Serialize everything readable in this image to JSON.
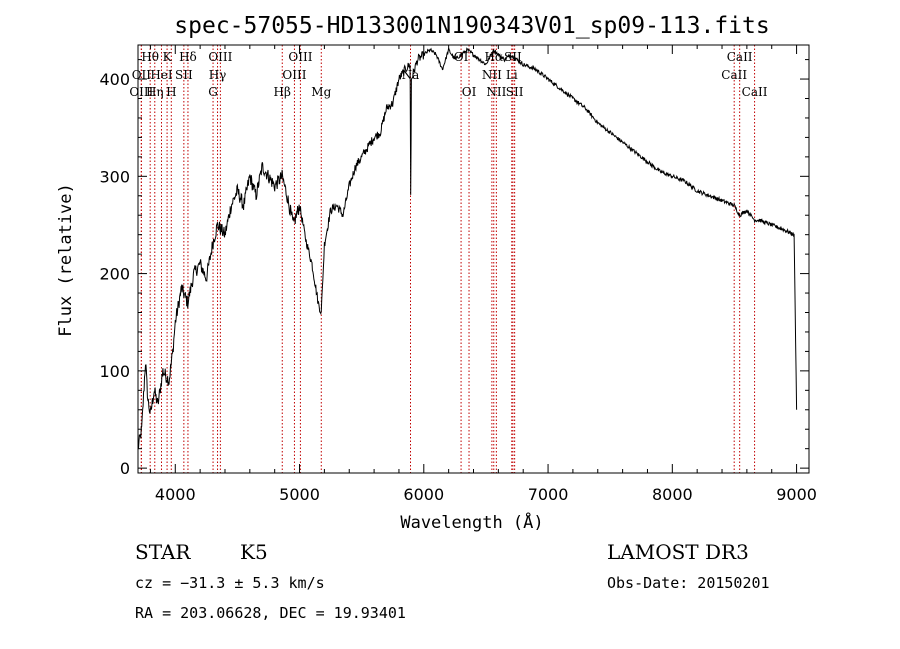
{
  "chart_data": {
    "type": "line",
    "title": "spec-57055-HD133001N190343V01_sp09-113.fits",
    "xlabel": "Wavelength (Å)",
    "ylabel": "Flux (relative)",
    "xlim": [
      3700,
      9100
    ],
    "ylim": [
      -5,
      435
    ],
    "xticks": [
      4000,
      5000,
      6000,
      7000,
      8000,
      9000
    ],
    "yticks": [
      0,
      100,
      200,
      300,
      400
    ],
    "series": [
      {
        "name": "flux",
        "x": [
          3700,
          3730,
          3760,
          3780,
          3800,
          3830,
          3860,
          3900,
          3950,
          3980,
          4000,
          4050,
          4100,
          4150,
          4200,
          4250,
          4300,
          4340,
          4400,
          4450,
          4500,
          4550,
          4600,
          4650,
          4700,
          4750,
          4800,
          4860,
          4900,
          4950,
          5000,
          5050,
          5100,
          5150,
          5175,
          5200,
          5250,
          5300,
          5350,
          5400,
          5450,
          5500,
          5550,
          5600,
          5650,
          5700,
          5750,
          5800,
          5850,
          5890,
          5895,
          5900,
          5950,
          6000,
          6050,
          6100,
          6150,
          6200,
          6250,
          6300,
          6350,
          6400,
          6450,
          6500,
          6563,
          6600,
          6650,
          6700,
          6750,
          6800,
          6900,
          7000,
          7100,
          7200,
          7300,
          7400,
          7500,
          7600,
          7700,
          7800,
          7900,
          8000,
          8100,
          8200,
          8300,
          8400,
          8498,
          8542,
          8600,
          8662,
          8700,
          8800,
          8900,
          8980,
          9000
        ],
        "y": [
          20,
          40,
          110,
          70,
          55,
          80,
          65,
          100,
          90,
          120,
          150,
          185,
          170,
          200,
          210,
          195,
          230,
          250,
          240,
          270,
          285,
          270,
          300,
          280,
          310,
          300,
          290,
          300,
          280,
          250,
          270,
          235,
          210,
          170,
          160,
          230,
          265,
          270,
          260,
          290,
          310,
          320,
          330,
          340,
          345,
          370,
          375,
          400,
          410,
          415,
          280,
          400,
          420,
          425,
          430,
          425,
          410,
          430,
          420,
          425,
          430,
          425,
          420,
          415,
          430,
          425,
          420,
          425,
          420,
          415,
          410,
          400,
          390,
          380,
          370,
          355,
          345,
          335,
          325,
          315,
          305,
          300,
          295,
          285,
          280,
          275,
          270,
          260,
          265,
          255,
          255,
          250,
          245,
          240,
          60
        ]
      }
    ],
    "spectral_lines": [
      {
        "name": "Hθ",
        "wl": 3798,
        "level": 0
      },
      {
        "name": "OII",
        "wl": 3727,
        "level": 1
      },
      {
        "name": "OIII",
        "wl": 3727,
        "level": 2
      },
      {
        "name": "K",
        "wl": 3934,
        "level": 0
      },
      {
        "name": "Hδ",
        "wl": 4102,
        "level": 0
      },
      {
        "name": "HeI",
        "wl": 3889,
        "level": 1
      },
      {
        "name": "SII",
        "wl": 4069,
        "level": 1
      },
      {
        "name": "Hη",
        "wl": 3835,
        "level": 2
      },
      {
        "name": "H",
        "wl": 3968,
        "level": 2
      },
      {
        "name": "OIII",
        "wl": 4363,
        "level": 0
      },
      {
        "name": "Hγ",
        "wl": 4340,
        "level": 1
      },
      {
        "name": "G",
        "wl": 4304,
        "level": 2
      },
      {
        "name": "OIII",
        "wl": 5007,
        "level": 0
      },
      {
        "name": "OIII",
        "wl": 4959,
        "level": 1
      },
      {
        "name": "Hβ",
        "wl": 4861,
        "level": 2
      },
      {
        "name": "Mg",
        "wl": 5175,
        "level": 2
      },
      {
        "name": "Na",
        "wl": 5893,
        "level": 1
      },
      {
        "name": "OI",
        "wl": 6300,
        "level": 0
      },
      {
        "name": "OI",
        "wl": 6364,
        "level": 2
      },
      {
        "name": "Hα",
        "wl": 6563,
        "level": 0
      },
      {
        "name": "SII",
        "wl": 6717,
        "level": 0
      },
      {
        "name": "NII",
        "wl": 6548,
        "level": 1
      },
      {
        "name": "Li",
        "wl": 6708,
        "level": 1
      },
      {
        "name": "NII",
        "wl": 6584,
        "level": 2
      },
      {
        "name": "SII",
        "wl": 6731,
        "level": 2
      },
      {
        "name": "CaII",
        "wl": 8542,
        "level": 0
      },
      {
        "name": "CaII",
        "wl": 8498,
        "level": 1
      },
      {
        "name": "CaII",
        "wl": 8662,
        "level": 2
      }
    ],
    "line_color": "#c00000",
    "spectrum_color": "#000000"
  },
  "info": {
    "class": "STAR",
    "subclass": "K5",
    "survey": "LAMOST DR3",
    "cz": "cz = −31.3 ± 5.3 km/s",
    "obs_date": "Obs-Date: 20150201",
    "radec": "RA = 203.06628, DEC =  19.93401"
  }
}
